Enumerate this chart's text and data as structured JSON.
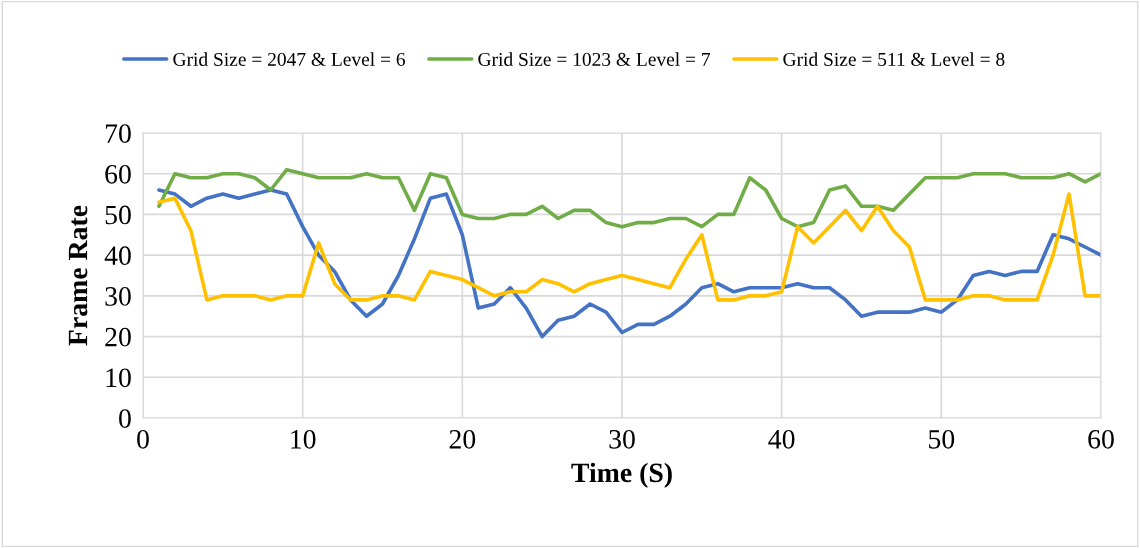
{
  "chart_data": {
    "type": "line",
    "xlabel": "Time (S)",
    "ylabel": "Frame Rate",
    "x": [
      1,
      2,
      3,
      4,
      5,
      6,
      7,
      8,
      9,
      10,
      11,
      12,
      13,
      14,
      15,
      16,
      17,
      18,
      19,
      20,
      21,
      22,
      23,
      24,
      25,
      26,
      27,
      28,
      29,
      30,
      31,
      32,
      33,
      34,
      35,
      36,
      37,
      38,
      39,
      40,
      41,
      42,
      43,
      44,
      45,
      46,
      47,
      48,
      49,
      50,
      51,
      52,
      53,
      54,
      55,
      56,
      57,
      58,
      59,
      60
    ],
    "series": [
      {
        "name": "Grid Size = 2047 & Level = 6",
        "color": "#4472c4",
        "values": [
          56,
          55,
          52,
          54,
          55,
          54,
          55,
          56,
          55,
          47,
          40,
          36,
          29,
          25,
          28,
          35,
          44,
          54,
          55,
          45,
          27,
          28,
          32,
          27,
          20,
          24,
          25,
          28,
          26,
          21,
          23,
          23,
          25,
          28,
          32,
          33,
          31,
          32,
          32,
          32,
          33,
          32,
          32,
          29,
          25,
          26,
          26,
          26,
          27,
          26,
          29,
          35,
          36,
          35,
          36,
          36,
          45,
          44,
          42,
          40
        ]
      },
      {
        "name": "Grid Size = 1023 & Level = 7",
        "color": "#70ad47",
        "values": [
          52,
          60,
          59,
          59,
          60,
          60,
          59,
          56,
          61,
          60,
          59,
          59,
          59,
          60,
          59,
          59,
          51,
          60,
          59,
          50,
          49,
          49,
          50,
          50,
          52,
          49,
          51,
          51,
          48,
          47,
          48,
          48,
          49,
          49,
          47,
          50,
          50,
          59,
          56,
          49,
          47,
          48,
          56,
          57,
          52,
          52,
          51,
          55,
          59,
          59,
          59,
          60,
          60,
          60,
          59,
          59,
          59,
          60,
          58,
          60
        ]
      },
      {
        "name": "Grid Size = 511 & Level = 8",
        "color": "#ffc000",
        "values": [
          53,
          54,
          46,
          29,
          30,
          30,
          30,
          29,
          30,
          30,
          43,
          33,
          29,
          29,
          30,
          30,
          29,
          36,
          35,
          34,
          32,
          30,
          31,
          31,
          34,
          33,
          31,
          33,
          34,
          35,
          34,
          33,
          32,
          39,
          45,
          29,
          29,
          30,
          30,
          31,
          47,
          43,
          47,
          51,
          46,
          52,
          46,
          42,
          29,
          29,
          29,
          30,
          30,
          29,
          29,
          29,
          40,
          55,
          30,
          30
        ]
      }
    ],
    "xlim": [
      0,
      60
    ],
    "xticks": [
      0,
      10,
      20,
      30,
      40,
      50,
      60
    ],
    "ylim": [
      0,
      70
    ],
    "yticks": [
      0,
      10,
      20,
      30,
      40,
      50,
      60,
      70
    ],
    "grid": true,
    "legend": "top",
    "marker": "none",
    "line_style": "solid"
  }
}
